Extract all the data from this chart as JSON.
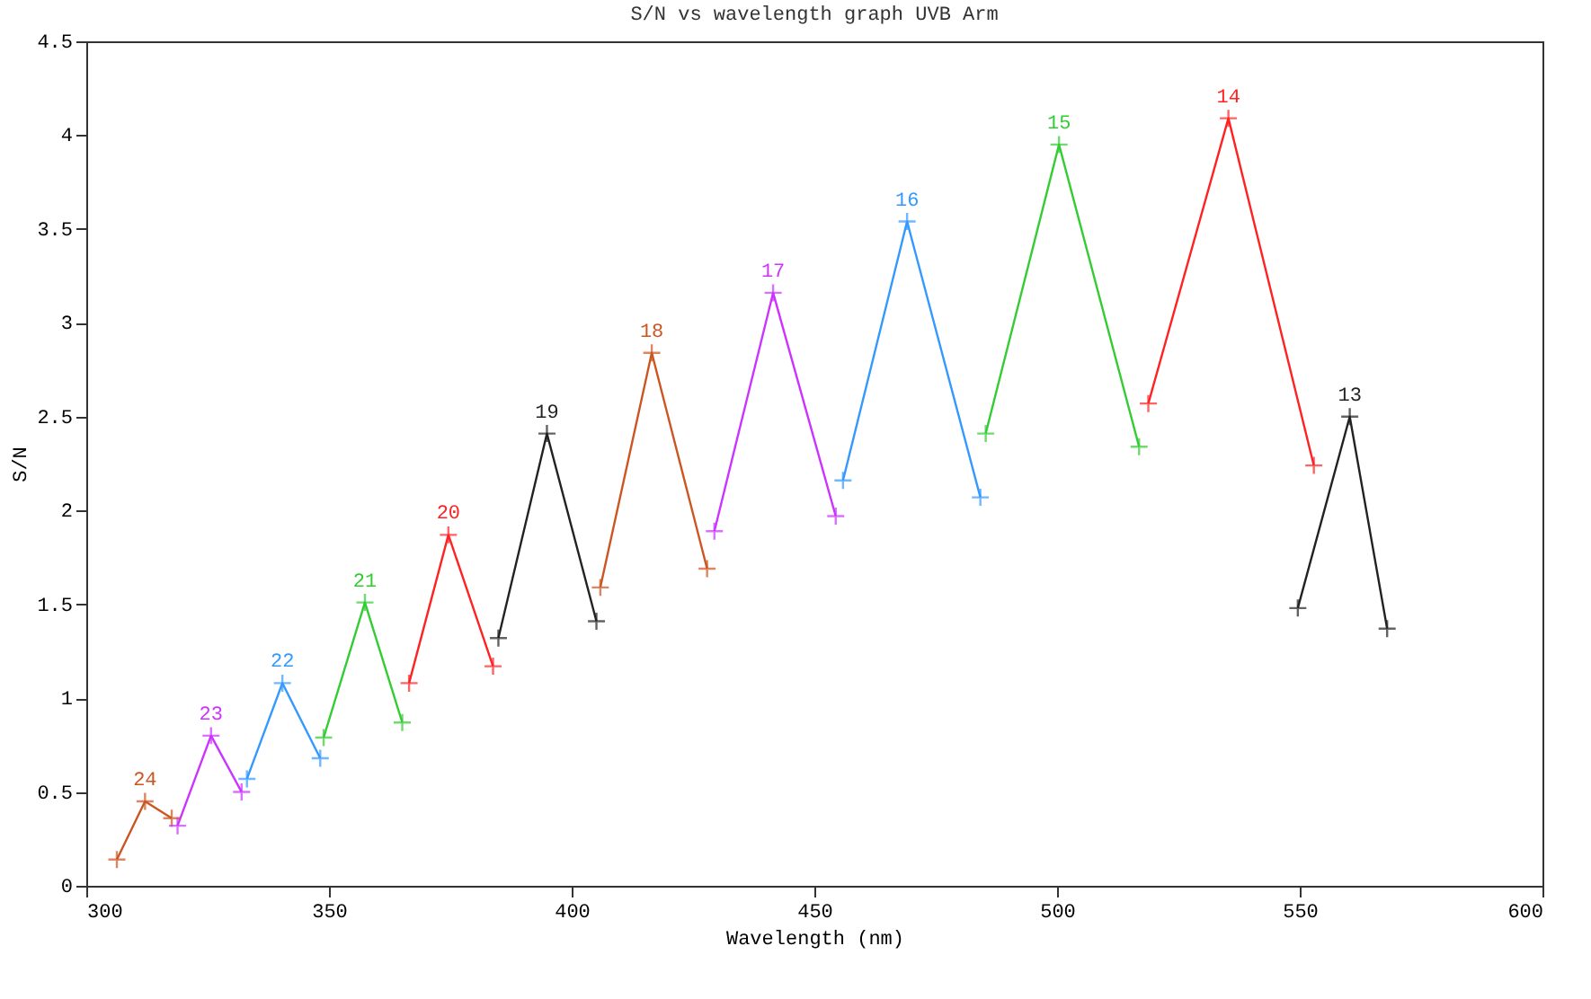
{
  "chart_data": {
    "type": "line",
    "title": "S/N vs wavelength graph UVB Arm",
    "xlabel": "Wavelength (nm)",
    "ylabel": "S/N",
    "xlim": [
      300,
      600
    ],
    "xticks": [
      300,
      350,
      400,
      450,
      500,
      550,
      600
    ],
    "ylim": [
      0,
      4.5
    ],
    "yticks": [
      0,
      0.5,
      1,
      1.5,
      2,
      2.5,
      3,
      3.5,
      4,
      4.5
    ],
    "grid": false,
    "legend": false,
    "marker": "cross",
    "line_style": "solid",
    "series": [
      {
        "name": "24",
        "color": "#cc5522",
        "x": [
          306.3,
          312.1,
          317.6
        ],
        "values": [
          0.14,
          0.45,
          0.36
        ]
      },
      {
        "name": "23",
        "color": "#cc33ff",
        "x": [
          318.8,
          325.7,
          332.0
        ],
        "values": [
          0.32,
          0.8,
          0.5
        ]
      },
      {
        "name": "22",
        "color": "#3399ff",
        "x": [
          333.1,
          340.4,
          348.2
        ],
        "values": [
          0.57,
          1.08,
          0.68
        ]
      },
      {
        "name": "21",
        "color": "#33cc33",
        "x": [
          348.9,
          357.4,
          365.1
        ],
        "values": [
          0.79,
          1.51,
          0.87
        ]
      },
      {
        "name": "20",
        "color": "#ff2222",
        "x": [
          366.5,
          374.6,
          383.8
        ],
        "values": [
          1.08,
          1.87,
          1.17
        ]
      },
      {
        "name": "19",
        "color": "#222222",
        "x": [
          384.9,
          394.9,
          405.1
        ],
        "values": [
          1.32,
          2.41,
          1.41
        ]
      },
      {
        "name": "18",
        "color": "#cc5522",
        "x": [
          405.9,
          416.5,
          427.9
        ],
        "values": [
          1.59,
          2.84,
          1.69
        ]
      },
      {
        "name": "17",
        "color": "#cc33ff",
        "x": [
          429.4,
          441.5,
          454.4
        ],
        "values": [
          1.89,
          3.16,
          1.97
        ]
      },
      {
        "name": "16",
        "color": "#3399ff",
        "x": [
          455.9,
          469.1,
          484.2
        ],
        "values": [
          2.16,
          3.54,
          2.07
        ]
      },
      {
        "name": "15",
        "color": "#33cc33",
        "x": [
          485.3,
          500.4,
          516.9
        ],
        "values": [
          2.41,
          3.95,
          2.34
        ]
      },
      {
        "name": "14",
        "color": "#ff2222",
        "x": [
          518.8,
          535.3,
          552.9
        ],
        "values": [
          2.57,
          4.09,
          2.24
        ]
      },
      {
        "name": "13",
        "color": "#222222",
        "x": [
          549.6,
          560.3,
          568.0
        ],
        "values": [
          1.48,
          2.5,
          1.37
        ]
      }
    ]
  }
}
